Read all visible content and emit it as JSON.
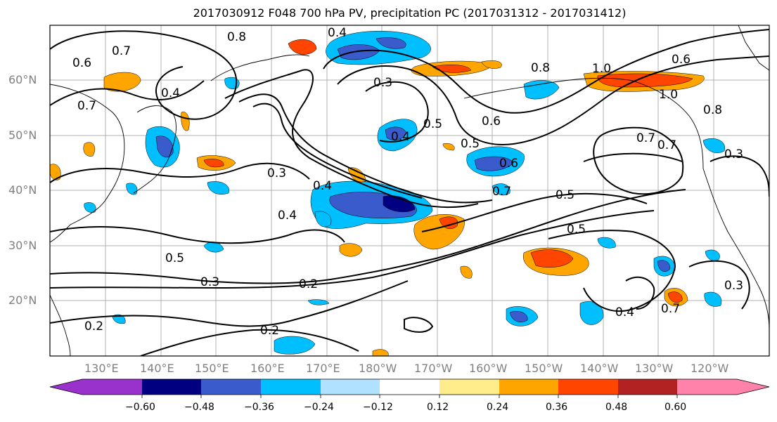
{
  "title": "2017030912 F048 700 hPa PV, precipitation PC (2017031312 - 2017031412)",
  "lat_labels": [
    "60°N",
    "50°N",
    "40°N",
    "30°N",
    "20°N"
  ],
  "lon_labels": [
    "130°E",
    "140°E",
    "150°E",
    "160°E",
    "170°E",
    "180°W",
    "170°W",
    "160°W",
    "150°W",
    "140°W",
    "130°W",
    "120°W"
  ],
  "contour_labels": [
    "0.8",
    "0.4",
    "0.7",
    "0.6",
    "0.4",
    "0.7",
    "0.3",
    "0.4",
    "0.5",
    "0.6",
    "0.8",
    "1.0",
    "0.6",
    "1.0",
    "0.8",
    "0.6",
    "0.5",
    "0.3",
    "0.7",
    "0.7",
    "0.4",
    "0.4",
    "0.3",
    "0.7",
    "0.5",
    "0.5",
    "0.5",
    "0.3",
    "0.2",
    "0.2",
    "0.2",
    "0.4",
    "0.7",
    "0.3"
  ],
  "colorbar": {
    "colors": [
      "#9932cc",
      "#000080",
      "#3a5bcc",
      "#00bfff",
      "#b0e2ff",
      "#ffffff",
      "#ffec8b",
      "#ffa500",
      "#ff4500",
      "#b22222",
      "#ff82ab"
    ],
    "ticks": [
      "−0.60",
      "−0.48",
      "−0.36",
      "−0.24",
      "−0.12",
      "0.12",
      "0.24",
      "0.36",
      "0.48",
      "0.60"
    ]
  }
}
